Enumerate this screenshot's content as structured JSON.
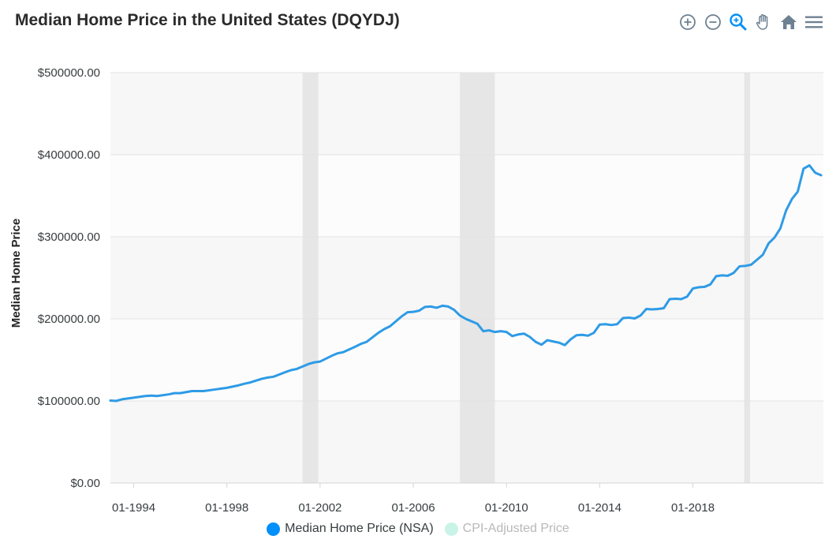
{
  "header": {
    "title": "Median Home Price in the United States (DQYDJ)"
  },
  "toolbar": {
    "zoom_in_icon": "zoom-in-icon",
    "zoom_out_icon": "zoom-out-icon",
    "selection_zoom_icon": "selection-zoom-icon",
    "pan_icon": "pan-hand-icon",
    "reset_icon": "home-icon",
    "menu_icon": "hamburger-menu-icon"
  },
  "colors": {
    "series": "#2e9be6",
    "series_inactive": "#c9f3e6",
    "shade": "#e6e6e6",
    "band_alt": "#f7f7f7",
    "grid": "#e3e3e3",
    "axis_text": "#373d3f",
    "toolbar_icon": "#6e8192",
    "toolbar_active": "#008ffb"
  },
  "chart_data": {
    "type": "line",
    "title": "Median Home Price in the United States (DQYDJ)",
    "xlabel": "",
    "ylabel": "Median Home Price",
    "xlim": [
      1993.0,
      2023.6
    ],
    "ylim": [
      0,
      500000
    ],
    "y_ticks": [
      0,
      100000,
      200000,
      300000,
      400000,
      500000
    ],
    "y_tick_labels": [
      "$0.00",
      "$100000.00",
      "$200000.00",
      "$300000.00",
      "$400000.00",
      "$500000.00"
    ],
    "x_ticks": [
      1994,
      1998,
      2002,
      2006,
      2010,
      2014,
      2018
    ],
    "x_tick_labels": [
      "01-1994",
      "01-1998",
      "01-2002",
      "01-2006",
      "01-2010",
      "01-2014",
      "01-2018"
    ],
    "shaded_regions": [
      {
        "start": 2001.25,
        "end": 2001.92
      },
      {
        "start": 2008.0,
        "end": 2009.5
      },
      {
        "start": 2020.2,
        "end": 2020.45
      }
    ],
    "legend": [
      {
        "name": "Median Home Price (NSA)",
        "color": "#008ffb",
        "active": true
      },
      {
        "name": "CPI-Adjusted Price",
        "color": "#c9f3e6",
        "active": false
      }
    ],
    "series": [
      {
        "name": "Median Home Price (NSA)",
        "x": [
          1993.0,
          1993.25,
          1993.5,
          1993.75,
          1994.0,
          1994.5,
          1994.75,
          1995.0,
          1995.5,
          1995.75,
          1996.0,
          1996.5,
          1996.75,
          1997.0,
          1997.5,
          1997.75,
          1998.0,
          1998.5,
          1998.75,
          1999.0,
          1999.5,
          1999.75,
          2000.0,
          2000.5,
          2000.75,
          2001.0,
          2001.5,
          2001.75,
          2002.0,
          2002.5,
          2002.75,
          2003.0,
          2003.5,
          2003.75,
          2004.0,
          2004.5,
          2004.75,
          2005.0,
          2005.5,
          2005.75,
          2006.0,
          2006.25,
          2006.5,
          2006.75,
          2007.0,
          2007.25,
          2007.5,
          2007.75,
          2008.0,
          2008.25,
          2008.5,
          2008.75,
          2009.0,
          2009.25,
          2009.5,
          2009.75,
          2010.0,
          2010.25,
          2010.5,
          2010.75,
          2011.0,
          2011.25,
          2011.5,
          2011.75,
          2012.0,
          2012.25,
          2012.5,
          2012.75,
          2013.0,
          2013.25,
          2013.5,
          2013.75,
          2014.0,
          2014.25,
          2014.5,
          2014.75,
          2015.0,
          2015.25,
          2015.5,
          2015.75,
          2016.0,
          2016.25,
          2016.5,
          2016.75,
          2017.0,
          2017.25,
          2017.5,
          2017.75,
          2018.0,
          2018.25,
          2018.5,
          2018.75,
          2019.0,
          2019.25,
          2019.5,
          2019.75,
          2020.0,
          2020.25,
          2020.5,
          2020.75,
          2021.0,
          2021.25,
          2021.5,
          2021.75,
          2022.0,
          2022.25,
          2022.5,
          2022.75,
          2023.0,
          2023.25,
          2023.5
        ],
        "values": [
          100500,
          100000,
          102000,
          103000,
          104000,
          106000,
          106500,
          106000,
          108000,
          109500,
          109500,
          112000,
          112000,
          112000,
          114000,
          115000,
          116000,
          119000,
          121000,
          122500,
          127000,
          128500,
          129500,
          135000,
          137500,
          139000,
          145000,
          147000,
          148000,
          155000,
          158000,
          159500,
          166000,
          169500,
          172000,
          183000,
          187500,
          191000,
          203000,
          208000,
          208500,
          210000,
          214500,
          215000,
          213500,
          216000,
          215000,
          211000,
          204000,
          200000,
          197000,
          194000,
          185000,
          186000,
          184000,
          185000,
          184000,
          179000,
          181000,
          182000,
          178000,
          172000,
          168500,
          174000,
          172500,
          171000,
          168000,
          175000,
          180000,
          180500,
          179500,
          183000,
          193000,
          193500,
          192500,
          193500,
          201000,
          201500,
          200500,
          204000,
          212000,
          211500,
          212000,
          213000,
          224000,
          224500,
          224000,
          227000,
          237000,
          238500,
          239000,
          242000,
          252000,
          253000,
          252500,
          256000,
          264000,
          264500,
          266000,
          272000,
          278000,
          292000,
          299000,
          310000,
          332000,
          346000,
          355000,
          383000,
          387000,
          378000,
          375000
        ]
      }
    ]
  }
}
